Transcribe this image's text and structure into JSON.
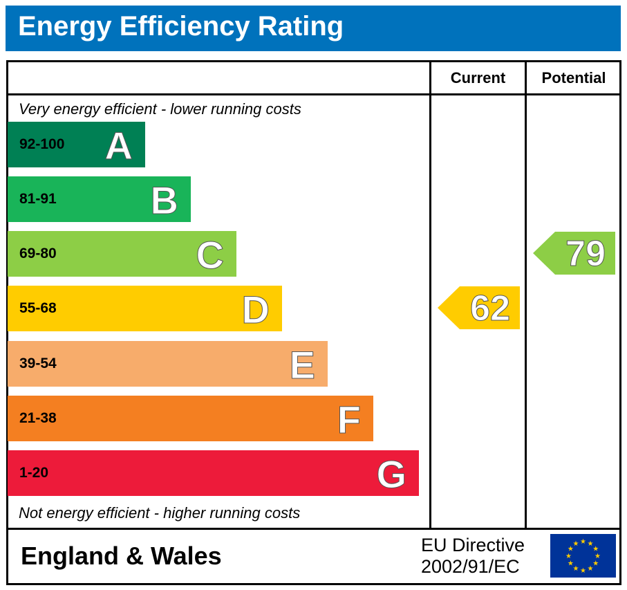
{
  "title": "Energy Efficiency Rating",
  "columns": {
    "current": "Current",
    "potential": "Potential"
  },
  "top_note": "Very energy efficient - lower running costs",
  "bottom_note": "Not energy efficient - higher running costs",
  "footer": {
    "country": "England & Wales",
    "directive_line1": "EU Directive",
    "directive_line2": "2002/91/EC"
  },
  "chart_data": {
    "type": "bar",
    "title": "Energy Efficiency Rating",
    "bands": [
      {
        "letter": "A",
        "range": "92-100",
        "color": "#008054"
      },
      {
        "letter": "B",
        "range": "81-91",
        "color": "#19b459"
      },
      {
        "letter": "C",
        "range": "69-80",
        "color": "#8dce46"
      },
      {
        "letter": "D",
        "range": "55-68",
        "color": "#ffcc00"
      },
      {
        "letter": "E",
        "range": "39-54",
        "color": "#f7ac6b"
      },
      {
        "letter": "F",
        "range": "21-38",
        "color": "#f47f21"
      },
      {
        "letter": "G",
        "range": "1-20",
        "color": "#ed1b3a"
      }
    ],
    "current": {
      "value": "62",
      "band": "D",
      "color": "#ffcc00"
    },
    "potential": {
      "value": "79",
      "band": "C",
      "color": "#8dce46"
    }
  }
}
